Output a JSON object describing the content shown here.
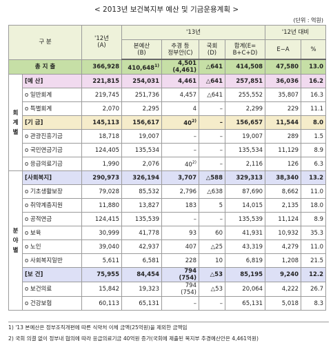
{
  "title": "< 2013년 보건복지부 예산 및 기금운용계획 >",
  "unit": "(단위 : 억원)",
  "header": {
    "col_group": "구 분",
    "a": "'12년\n(A)",
    "year": "'13년",
    "b": "본예산\n(B)",
    "c": "추경 등\n정부안(C)",
    "d": "국회\n(D)",
    "e": "합계(E=\nB+C+D)",
    "cmp": "'12년 대비",
    "ea": "E−A",
    "pct": "%"
  },
  "table": {
    "summary": {
      "name": "총 지 출",
      "color": "#c6dfa6",
      "cells": [
        "366,928",
        {
          "text": "410,648",
          "note": "1)"
        },
        {
          "text": "4,501",
          "sub": "(4,461)"
        },
        "△641",
        "414,508",
        "47,580",
        "13.0"
      ]
    },
    "groups": [
      {
        "label": "회계별",
        "rows": [
          {
            "name": "[예 산]",
            "color": "#f1daef",
            "cells": [
              "221,815",
              "254,031",
              "4,461",
              "△641",
              "257,851",
              "36,036",
              "16.2"
            ]
          },
          {
            "name": "o 일반회계",
            "cells": [
              "219,745",
              "251,736",
              "4,457",
              "△641",
              "255,552",
              "35,807",
              "16.3"
            ]
          },
          {
            "name": "o 특별회계",
            "cells": [
              "2,070",
              "2,295",
              "4",
              "–",
              "2,299",
              "229",
              "11.1"
            ]
          },
          {
            "name": "[기 금]",
            "color": "#f5ecca",
            "cells": [
              "145,113",
              "156,617",
              {
                "text": "40",
                "note": "2)"
              },
              "–",
              "156,657",
              "11,544",
              "8.0"
            ]
          },
          {
            "name": "o 관광진흥기금",
            "cells": [
              "18,718",
              "19,007",
              "–",
              "–",
              "19,007",
              "289",
              "1.5"
            ]
          },
          {
            "name": "o 국민연금기금",
            "cells": [
              "124,405",
              "135,534",
              "–",
              "–",
              "135,534",
              "11,129",
              "8.9"
            ]
          },
          {
            "name": "o 응급의료기금",
            "cells": [
              "1,990",
              "2,076",
              {
                "text": "40",
                "note": "2)"
              },
              "–",
              "2,116",
              "126",
              "6.3"
            ]
          }
        ]
      },
      {
        "label": "분야별",
        "rows": [
          {
            "name": "[사회복지]",
            "color": "#dde0f6",
            "cells": [
              "290,973",
              "326,194",
              "3,707",
              "△588",
              "329,313",
              "38,340",
              "13.2"
            ]
          },
          {
            "name": "o 기초생활보장",
            "cells": [
              "79,028",
              "85,532",
              "2,796",
              "△638",
              "87,690",
              "8,662",
              "11.0"
            ]
          },
          {
            "name": "o 취약계층지원",
            "cells": [
              "11,880",
              "13,827",
              "183",
              "5",
              "14,015",
              "2,135",
              "18.0"
            ]
          },
          {
            "name": "o 공적연금",
            "cells": [
              "124,415",
              "135,539",
              "–",
              "–",
              "135,539",
              "11,124",
              "8.9"
            ]
          },
          {
            "name": "o 보육",
            "cells": [
              "30,999",
              "41,778",
              "93",
              "60",
              "41,931",
              "10,932",
              "35.3"
            ]
          },
          {
            "name": "o 노인",
            "cells": [
              "39,040",
              "42,937",
              "407",
              "△25",
              "43,319",
              "4,279",
              "11.0"
            ]
          },
          {
            "name": "o 사회복지일반",
            "cells": [
              "5,611",
              "6,581",
              "228",
              "10",
              "6,819",
              "1,208",
              "21.5"
            ]
          },
          {
            "name": "[보 건]",
            "color": "#dde0f6",
            "cells": [
              "75,955",
              "84,454",
              {
                "text": "794",
                "sub": "(754)"
              },
              "△53",
              "85,195",
              "9,240",
              "12.2"
            ]
          },
          {
            "name": "o 보건의료",
            "cells": [
              "15,842",
              "19,323",
              {
                "text": "794",
                "sub": "(754)"
              },
              "△53",
              "20,064",
              "4,222",
              "26.7"
            ]
          },
          {
            "name": "o 건강보험",
            "cells": [
              "60,113",
              "65,131",
              "–",
              "–",
              "65,131",
              "5,018",
              "8.3"
            ]
          }
        ]
      }
    ]
  },
  "footnotes": [
    "1) '13 본예산은 정부조직개편에 따른 식약처 이체 금액(25억원)을 제외한 금액임",
    "2) 국회 의결 없이 정부내 협의에 따라 응급의료기금 40억원 증가(국회에 제출된 복지부 추경예산안은 4,461억원)"
  ]
}
